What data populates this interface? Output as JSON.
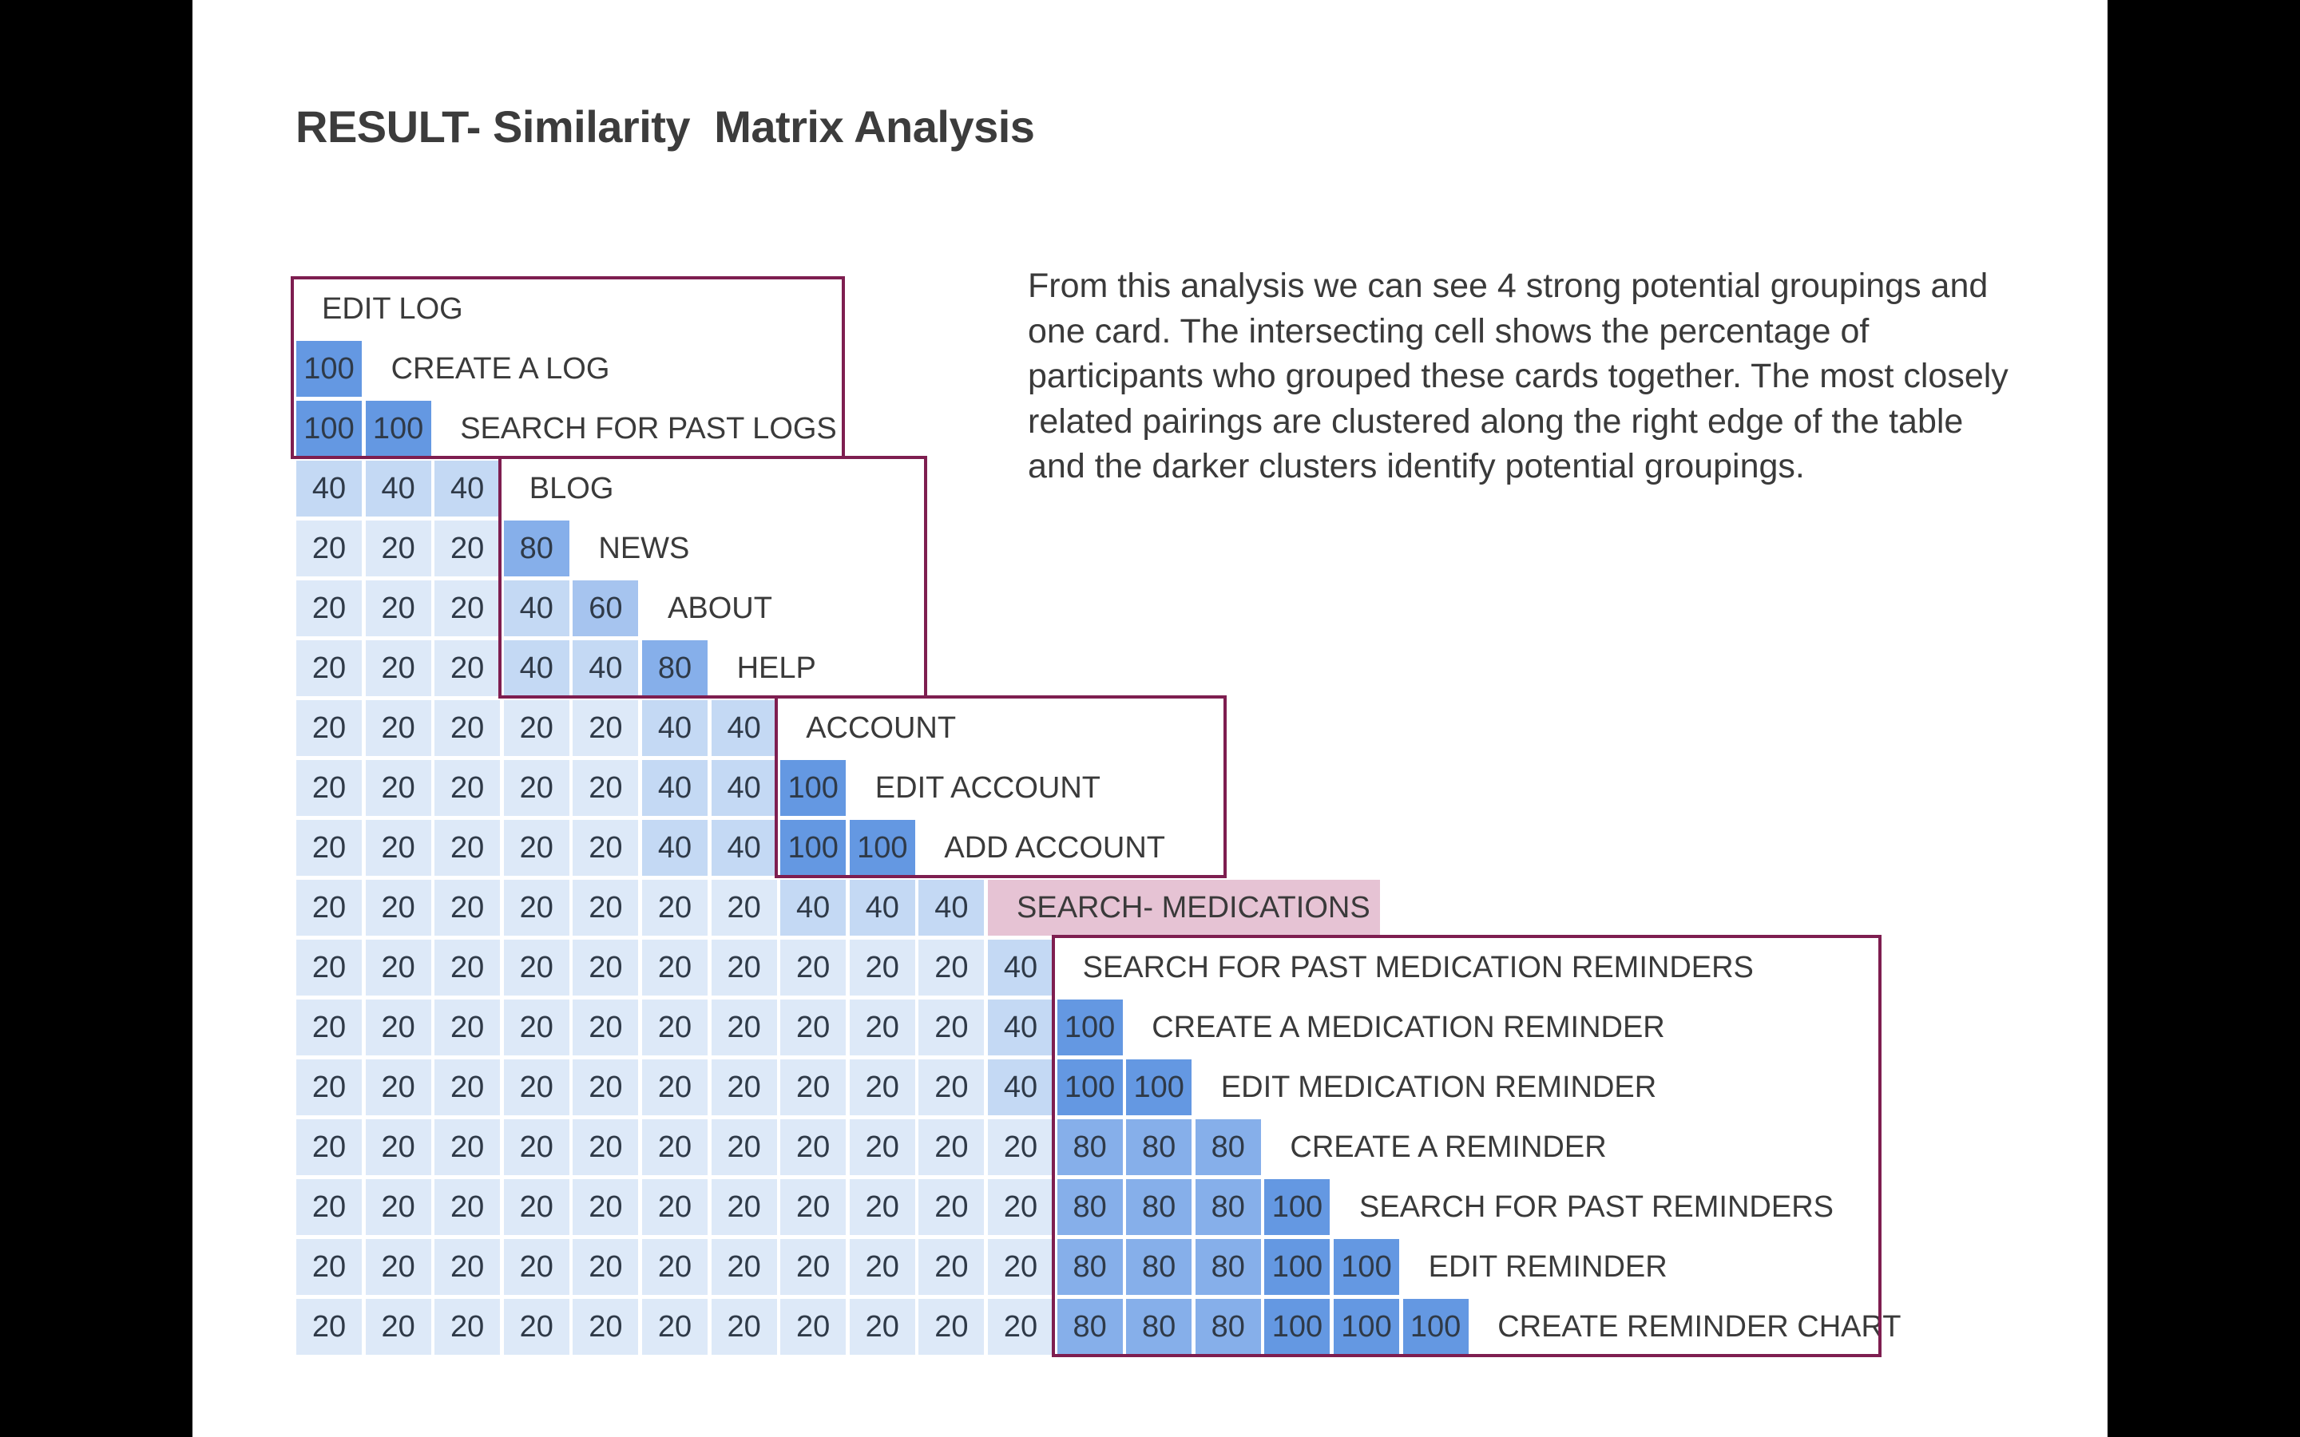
{
  "title": "RESULT- Similarity  Matrix Analysis",
  "description": "From this analysis we can see 4 strong potential groupings and one card.  The intersecting cell shows the percentage of participants who grouped these cards together.  The most closely related pairings are clustered along the right edge of the table and the darker clusters identify potential groupings.",
  "colors": {
    "background": "#000000",
    "slide": "#ffffff",
    "group_border": "#7e1e50",
    "single_card_highlight": "#e6c3d4",
    "scale": {
      "20": "#dde9f8",
      "40": "#c4d9f4",
      "60": "#a6c4ef",
      "80": "#86afea",
      "100": "#6498e2"
    }
  },
  "chart_data": {
    "type": "heatmap",
    "title": "RESULT- Similarity  Matrix Analysis",
    "unit": "percent of participants",
    "cards": [
      "EDIT LOG",
      "CREATE A LOG",
      "SEARCH FOR PAST LOGS",
      "BLOG",
      "NEWS",
      "ABOUT",
      "HELP",
      "ACCOUNT",
      "EDIT ACCOUNT",
      "ADD ACCOUNT",
      "SEARCH- MEDICATIONS",
      "SEARCH FOR PAST MEDICATION REMINDERS",
      "CREATE A MEDICATION REMINDER",
      "EDIT MEDICATION REMINDER",
      "CREATE A REMINDER",
      "SEARCH FOR PAST REMINDERS",
      "EDIT REMINDER",
      "CREATE REMINDER CHART"
    ],
    "matrix": [
      [],
      [
        100
      ],
      [
        100,
        100
      ],
      [
        40,
        40,
        40
      ],
      [
        20,
        20,
        20,
        80
      ],
      [
        20,
        20,
        20,
        40,
        60
      ],
      [
        20,
        20,
        20,
        40,
        40,
        80
      ],
      [
        20,
        20,
        20,
        20,
        20,
        40,
        40
      ],
      [
        20,
        20,
        20,
        20,
        20,
        40,
        40,
        100
      ],
      [
        20,
        20,
        20,
        20,
        20,
        40,
        40,
        100,
        100
      ],
      [
        20,
        20,
        20,
        20,
        20,
        20,
        20,
        40,
        40,
        40
      ],
      [
        20,
        20,
        20,
        20,
        20,
        20,
        20,
        20,
        20,
        20,
        40
      ],
      [
        20,
        20,
        20,
        20,
        20,
        20,
        20,
        20,
        20,
        20,
        40,
        100
      ],
      [
        20,
        20,
        20,
        20,
        20,
        20,
        20,
        20,
        20,
        20,
        40,
        100,
        100
      ],
      [
        20,
        20,
        20,
        20,
        20,
        20,
        20,
        20,
        20,
        20,
        20,
        80,
        80,
        80
      ],
      [
        20,
        20,
        20,
        20,
        20,
        20,
        20,
        20,
        20,
        20,
        20,
        80,
        80,
        80,
        100
      ],
      [
        20,
        20,
        20,
        20,
        20,
        20,
        20,
        20,
        20,
        20,
        20,
        80,
        80,
        80,
        100,
        100
      ],
      [
        20,
        20,
        20,
        20,
        20,
        20,
        20,
        20,
        20,
        20,
        20,
        80,
        80,
        80,
        100,
        100,
        100
      ]
    ],
    "groups": [
      {
        "first_card": 0,
        "last_card": 2
      },
      {
        "first_card": 3,
        "last_card": 6
      },
      {
        "first_card": 7,
        "last_card": 9
      },
      {
        "first_card": 11,
        "last_card": 17
      }
    ],
    "single_cards": [
      10
    ]
  }
}
